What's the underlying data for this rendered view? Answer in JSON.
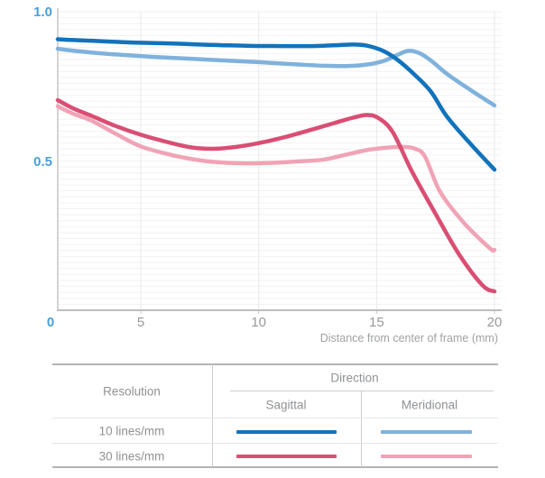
{
  "chart": {
    "y_ticks": [
      {
        "label": "1.0",
        "value": 1.0
      },
      {
        "label": "0.5",
        "value": 0.5
      }
    ],
    "x_ticks": [
      {
        "label": "0",
        "value": 0,
        "accent": true
      },
      {
        "label": "5",
        "value": 5
      },
      {
        "label": "10",
        "value": 10
      },
      {
        "label": "15",
        "value": 15
      },
      {
        "label": "20",
        "value": 20
      }
    ],
    "x_axis_title": "Distance from center of frame (mm)"
  },
  "chart_data": {
    "type": "line",
    "title": "",
    "xlabel": "Distance from center of frame (mm)",
    "ylabel": "",
    "xlim": [
      0,
      20
    ],
    "ylim": [
      0,
      1.0
    ],
    "x_tick_labels": [
      "0",
      "5",
      "10",
      "15",
      "20"
    ],
    "y_tick_labels": [
      "0.5",
      "1.0"
    ],
    "grid": true,
    "legend_position": "table-below",
    "series": [
      {
        "id": "10-meridional",
        "name": "10 lines/mm Meridional",
        "color": "#7fb2dc",
        "x": [
          0,
          1,
          2.5,
          4,
          5.5,
          7,
          8.5,
          10,
          11.5,
          12.8,
          13.7,
          14.5,
          15.3,
          15.9,
          16.35,
          16.8,
          17.3,
          18,
          19,
          20
        ],
        "y": [
          0.876,
          0.869,
          0.861,
          0.855,
          0.849,
          0.843,
          0.837,
          0.831,
          0.824,
          0.819,
          0.818,
          0.822,
          0.835,
          0.856,
          0.869,
          0.862,
          0.837,
          0.791,
          0.737,
          0.686
        ]
      },
      {
        "id": "30-meridional",
        "name": "30 lines/mm Meridional",
        "color": "#f1a3b6",
        "x": [
          0,
          0.9,
          2,
          3.5,
          5,
          6.2,
          7.2,
          8.2,
          9.4,
          10.6,
          11.8,
          12.8,
          13.8,
          14.7,
          15.5,
          16.1,
          16.6,
          17.05,
          17.7,
          18.7,
          19.8,
          20
        ],
        "y": [
          0.683,
          0.659,
          0.636,
          0.591,
          0.549,
          0.522,
          0.506,
          0.496,
          0.492,
          0.494,
          0.499,
          0.505,
          0.523,
          0.538,
          0.545,
          0.547,
          0.542,
          0.515,
          0.396,
          0.293,
          0.208,
          0.202
        ]
      },
      {
        "id": "30-sagittal",
        "name": "30 lines/mm Sagittal",
        "color": "#da4e73",
        "x": [
          0,
          0.9,
          2,
          3.5,
          5,
          6.2,
          7.2,
          8.2,
          9.2,
          10.2,
          11.2,
          12.2,
          13.2,
          14,
          14.6,
          15.1,
          15.7,
          16.5,
          17.5,
          18.5,
          19.5,
          20
        ],
        "y": [
          0.704,
          0.677,
          0.652,
          0.617,
          0.588,
          0.562,
          0.545,
          0.541,
          0.549,
          0.563,
          0.582,
          0.604,
          0.627,
          0.645,
          0.654,
          0.643,
          0.595,
          0.465,
          0.323,
          0.187,
          0.083,
          0.063
        ]
      },
      {
        "id": "10-sagittal",
        "name": "10 lines/mm Sagittal",
        "color": "#1173bb",
        "x": [
          0,
          1,
          2,
          3.5,
          5,
          6.5,
          8,
          9.5,
          11,
          12.3,
          13.3,
          14,
          14.6,
          15.3,
          15.9,
          16.6,
          17.3,
          18,
          19,
          20
        ],
        "y": [
          0.908,
          0.905,
          0.903,
          0.899,
          0.896,
          0.893,
          0.889,
          0.886,
          0.885,
          0.885,
          0.888,
          0.89,
          0.886,
          0.868,
          0.838,
          0.79,
          0.733,
          0.647,
          0.556,
          0.471
        ]
      }
    ]
  },
  "table": {
    "resolution_header": "Resolution",
    "direction_header": "Direction",
    "direction_columns": [
      "Sagittal",
      "Meridional"
    ],
    "rows": [
      {
        "resolution": "10 lines/mm",
        "sagittal_color": "#1173bb",
        "meridional_color": "#7fb2dc"
      },
      {
        "resolution": "30 lines/mm",
        "sagittal_color": "#da4e73",
        "meridional_color": "#f1a3b6"
      }
    ]
  },
  "colors": {
    "accent_axis_label": "#4aa0d8",
    "muted_axis_label": "#97999c",
    "axis_line": "#c3c5c7",
    "grid_minor": "#f2f2f3",
    "grid_major": "#e7e8ea"
  }
}
